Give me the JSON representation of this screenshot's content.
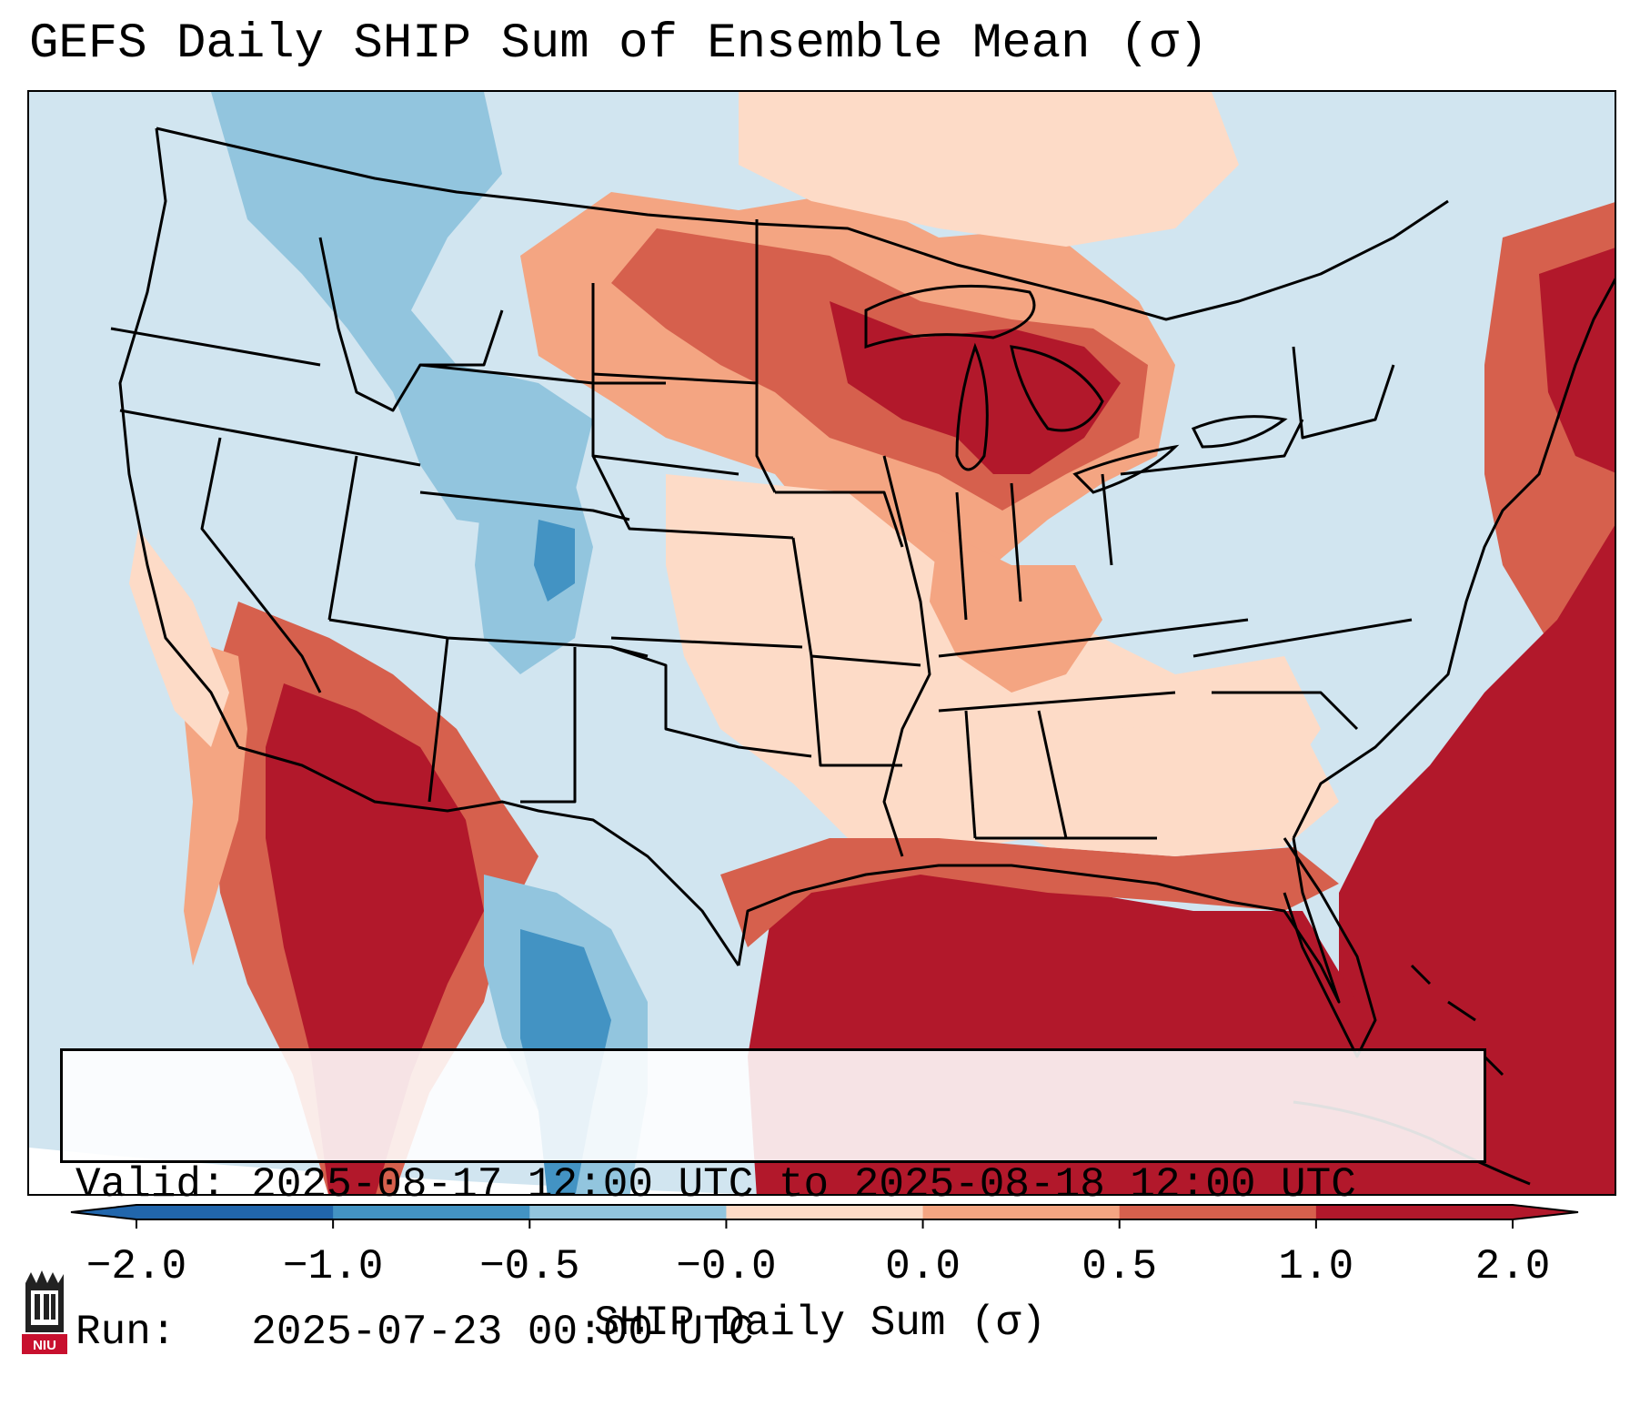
{
  "title": "GEFS Daily SHIP Sum of Ensemble Mean (σ)",
  "info_box": {
    "valid_label": "Valid:",
    "valid_value": "2025-08-17 12:00 UTC to 2025-08-18 12:00 UTC",
    "run_label": "Run:",
    "run_value": "2025-07-23 00:00 UTC"
  },
  "colorbar": {
    "label": "SHIP Daily Sum (σ)",
    "ticks": [
      "-2.0",
      "-1.0",
      "-0.5",
      "-0.0",
      "0.0",
      "0.5",
      "1.0",
      "2.0"
    ],
    "colors": [
      "#2166ac",
      "#4393c3",
      "#92c5de",
      "#d1e5f0",
      "#fddbc7",
      "#f4a582",
      "#d6604d",
      "#b2182b"
    ],
    "extend": "both"
  },
  "map": {
    "region": "Continental United States",
    "colors": {
      "ocean_neutral": "#d1e5f0",
      "low_negative": "#92c5de",
      "mid_negative": "#4393c3",
      "strong_negative": "#2166ac",
      "low_positive": "#fddbc7",
      "mid_positive": "#f4a582",
      "high_positive": "#d6604d",
      "very_high_positive": "#b2182b",
      "boundaries": "#000000"
    }
  },
  "logo": {
    "text": "NIU",
    "icon": "university-tower-icon"
  }
}
